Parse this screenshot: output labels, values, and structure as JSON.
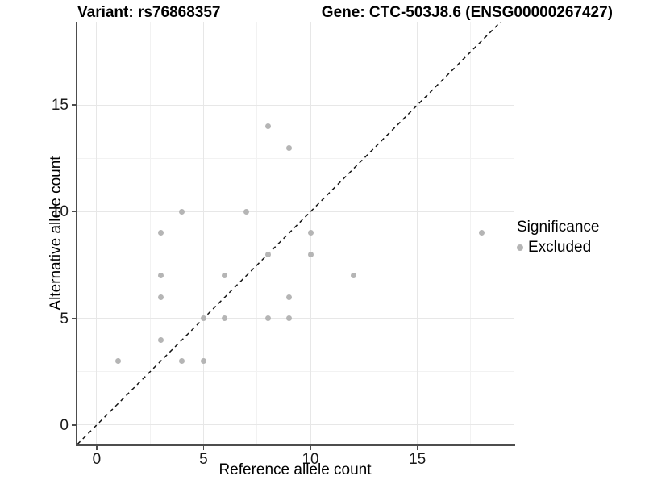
{
  "chart_data": {
    "type": "scatter",
    "title_left": "Variant: rs76868357",
    "title_right": "Gene: CTC-503J8.6 (ENSG00000267427)",
    "xlabel": "Reference allele count",
    "ylabel": "Alternative allele count",
    "x_ticks": [
      0,
      5,
      10,
      15
    ],
    "y_ticks": [
      0,
      5,
      10,
      15
    ],
    "x_minor_ticks": [
      2.5,
      7.5,
      12.5,
      17.5
    ],
    "y_minor_ticks": [
      2.5,
      7.5,
      12.5,
      17.5
    ],
    "xlim": [
      -0.9,
      19.5
    ],
    "ylim": [
      -0.91,
      18.9
    ],
    "grid": "major and minor, light grey on white panel",
    "identity_line": {
      "equation": "y = x",
      "style": "dashed",
      "color": "#141414"
    },
    "series": [
      {
        "name": "Excluded",
        "color": "#b5b5b5",
        "points": [
          [
            1,
            3
          ],
          [
            3,
            4
          ],
          [
            3,
            6
          ],
          [
            3,
            7
          ],
          [
            3,
            9
          ],
          [
            4,
            3
          ],
          [
            4,
            10
          ],
          [
            5,
            3
          ],
          [
            5,
            5
          ],
          [
            6,
            5
          ],
          [
            6,
            7
          ],
          [
            7,
            10
          ],
          [
            8,
            5
          ],
          [
            8,
            8
          ],
          [
            8,
            14
          ],
          [
            9,
            5
          ],
          [
            9,
            6
          ],
          [
            9,
            13
          ],
          [
            10,
            8
          ],
          [
            10,
            9
          ],
          [
            12,
            7
          ],
          [
            18,
            9
          ]
        ]
      }
    ],
    "legend": {
      "position": "right",
      "title": "Significance",
      "items": [
        {
          "label": "Excluded",
          "color": "#b5b5b5"
        }
      ]
    },
    "colors": {
      "point": "#b5b5b5",
      "grid_major": "#e7e7e7",
      "grid_minor": "#f2f2f2",
      "axis_line": "#4d4d4d",
      "text": "#000000",
      "background": "#ffffff"
    }
  }
}
